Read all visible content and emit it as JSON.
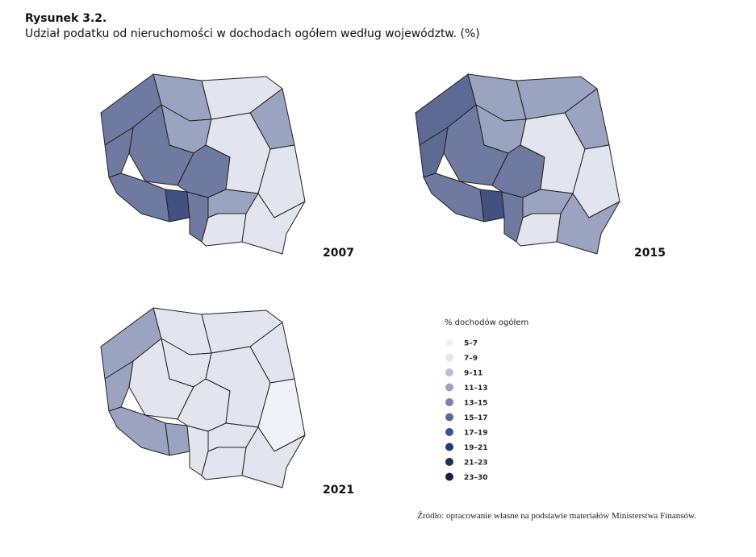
{
  "header": {
    "label": "Rysunek 3.2.",
    "title": "Udział podatku od nieruchomości w dochodach ogółem według województw. (%)"
  },
  "maps": [
    {
      "year": "2007"
    },
    {
      "year": "2015"
    },
    {
      "year": "2021"
    }
  ],
  "legend": {
    "title": "% dochodów ogółem",
    "items": [
      {
        "label": "5–7",
        "color": "#f1f2f7"
      },
      {
        "label": "7–9",
        "color": "#e2e4ee"
      },
      {
        "label": "9–11",
        "color": "#b9bed3"
      },
      {
        "label": "11–13",
        "color": "#9aa3bf"
      },
      {
        "label": "13–15",
        "color": "#7a84a8"
      },
      {
        "label": "15–17",
        "color": "#5d6a94"
      },
      {
        "label": "17–19",
        "color": "#435181"
      },
      {
        "label": "19–21",
        "color": "#1f3f6e"
      },
      {
        "label": "21–23",
        "color": "#163358"
      },
      {
        "label": "23–30",
        "color": "#0f2442"
      }
    ]
  },
  "source": "Źródło: opracowanie własne na podstawie materiałów Ministerstwa Finansów."
}
